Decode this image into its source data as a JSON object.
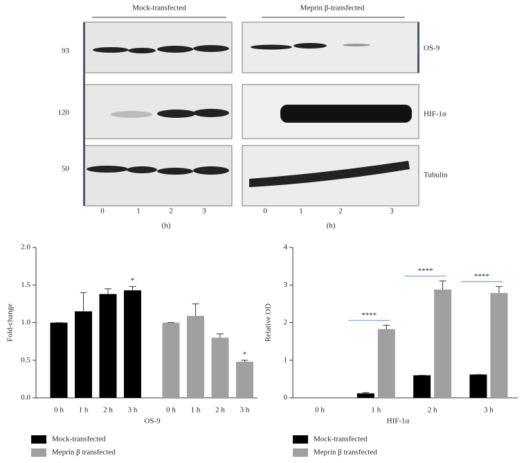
{
  "blot": {
    "groups": [
      "Mock-transfected",
      "Meprin β-transfected"
    ],
    "markers": [
      "93",
      "120",
      "50"
    ],
    "proteins": [
      "OS-9",
      "HIF-1α",
      "Tubulin"
    ],
    "lanes": [
      "0",
      "1",
      "2",
      "3"
    ],
    "unit": "(h)"
  },
  "chart_data": [
    {
      "type": "bar",
      "ylabel": "Fold-change",
      "xlabel": "OS-9",
      "categories": [
        "0 h",
        "1 h",
        "2 h",
        "3 h"
      ],
      "ylim": [
        0,
        2
      ],
      "yticks": [
        {
          "value": 0,
          "label": "0.0"
        },
        0.5,
        {
          "value": 1,
          "label": "1.0"
        },
        1.5,
        {
          "value": 2,
          "label": "2.0"
        }
      ],
      "series": [
        {
          "name": "Mock-transfected",
          "color": "#000000",
          "values": [
            1.0,
            1.15,
            1.38,
            1.43
          ],
          "errors": [
            0,
            0.25,
            0.07,
            0.05
          ],
          "labels": [
            null,
            null,
            null,
            "*"
          ]
        },
        {
          "name": "Meprin β transfected",
          "color": "#a0a0a0",
          "values": [
            1.0,
            1.09,
            0.8,
            0.48
          ],
          "errors": [
            0,
            0.16,
            0.05,
            0.02
          ],
          "labels": [
            null,
            null,
            null,
            "*"
          ]
        }
      ]
    },
    {
      "type": "bar",
      "ylabel": "Relative OD",
      "xlabel": "HIF-1α",
      "categories": [
        "0 h",
        "1 h",
        "2 h",
        "3 h"
      ],
      "ylim": [
        0,
        4
      ],
      "yticks": [
        0,
        1,
        2,
        3,
        4
      ],
      "series": [
        {
          "name": "Mock-transfected",
          "color": "#000000",
          "values": [
            0,
            0.12,
            0.6,
            0.62
          ],
          "errors": [
            0,
            0.02,
            0,
            0
          ]
        },
        {
          "name": "Meprin β transfected",
          "color": "#a0a0a0",
          "values": [
            0,
            1.83,
            2.88,
            2.79
          ],
          "errors": [
            0,
            0.1,
            0.23,
            0.17
          ]
        }
      ],
      "significance": [
        null,
        "****",
        "****",
        "****"
      ]
    }
  ]
}
